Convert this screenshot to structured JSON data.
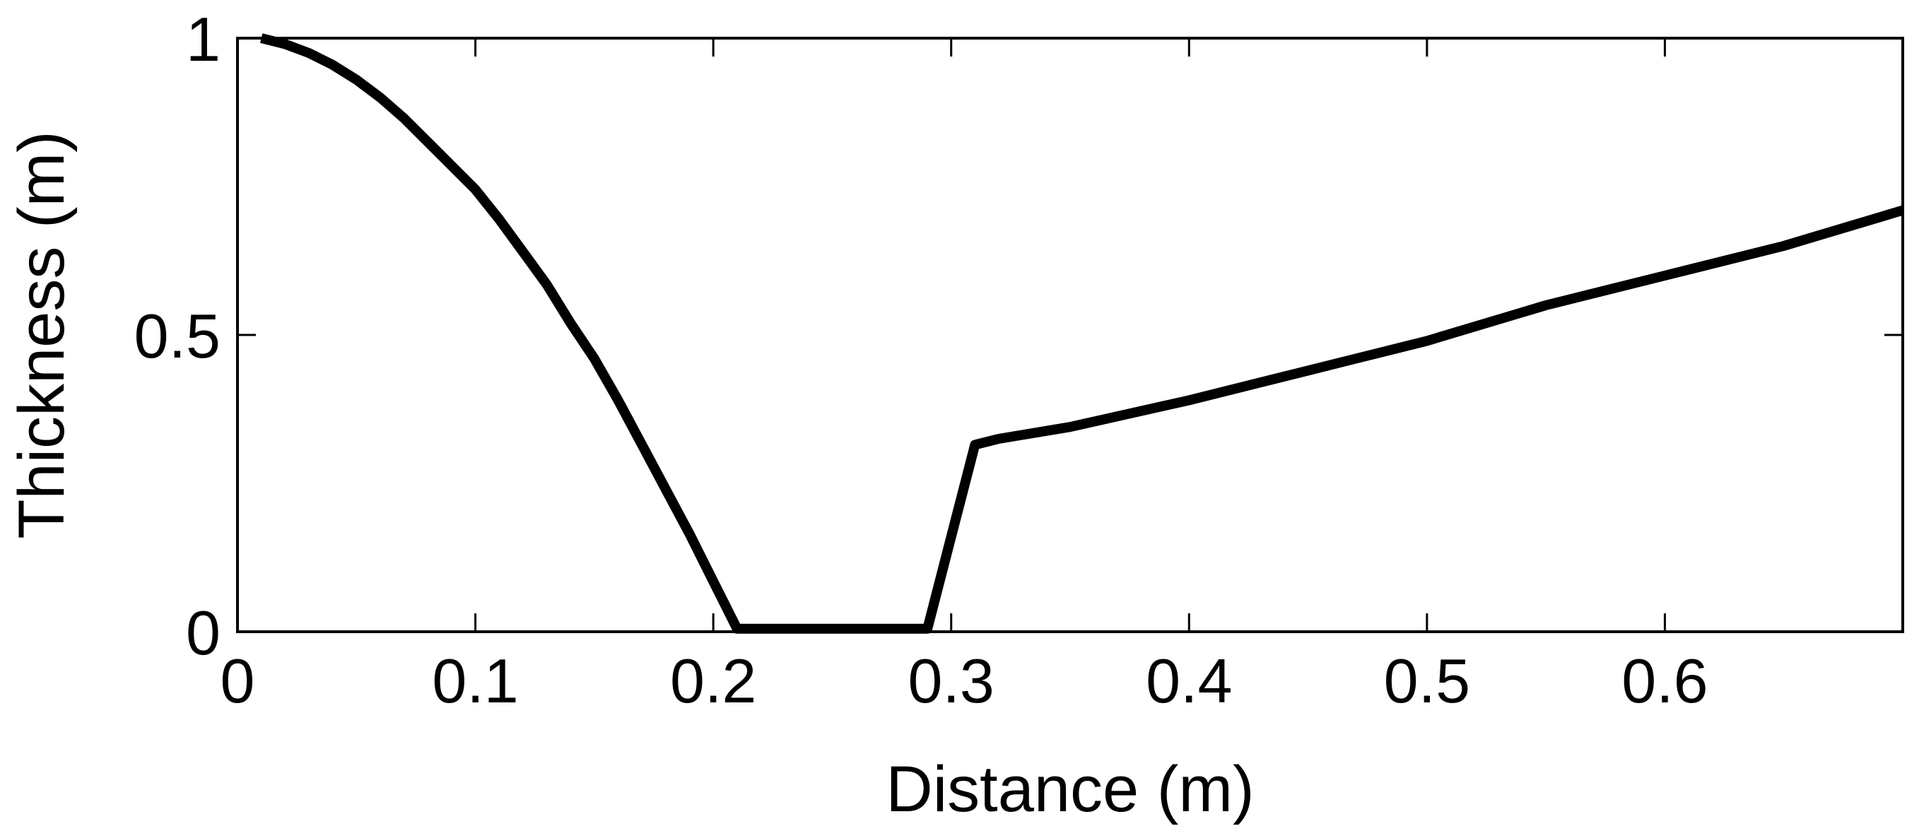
{
  "chart_data": {
    "type": "line",
    "title": "",
    "xlabel": "Distance (m)",
    "ylabel": "Thickness (m)",
    "xlim": [
      0,
      0.7
    ],
    "ylim": [
      0,
      1
    ],
    "grid": false,
    "legend": "none",
    "line_color": "#000000",
    "x_ticks": [
      {
        "value": 0,
        "label": "0"
      },
      {
        "value": 0.1,
        "label": "0.1"
      },
      {
        "value": 0.2,
        "label": "0.2"
      },
      {
        "value": 0.3,
        "label": "0.3"
      },
      {
        "value": 0.4,
        "label": "0.4"
      },
      {
        "value": 0.5,
        "label": "0.5"
      },
      {
        "value": 0.6,
        "label": "0.6"
      }
    ],
    "y_ticks": [
      {
        "value": 0,
        "label": "0"
      },
      {
        "value": 0.5,
        "label": "0.5"
      },
      {
        "value": 1,
        "label": "1"
      }
    ],
    "series": [
      {
        "x": [
          0.01,
          0.02,
          0.03,
          0.04,
          0.05,
          0.06,
          0.07,
          0.08,
          0.09,
          0.1,
          0.11,
          0.12,
          0.13,
          0.14,
          0.15,
          0.16,
          0.17,
          0.18,
          0.19,
          0.2,
          0.21,
          0.22,
          0.23,
          0.24,
          0.25,
          0.26,
          0.27,
          0.28,
          0.29,
          0.3,
          0.31,
          0.32,
          0.35,
          0.4,
          0.45,
          0.5,
          0.55,
          0.6,
          0.65,
          0.7
        ],
        "y": [
          1.0,
          0.99,
          0.975,
          0.955,
          0.93,
          0.9,
          0.865,
          0.825,
          0.785,
          0.745,
          0.695,
          0.64,
          0.585,
          0.52,
          0.46,
          0.39,
          0.315,
          0.24,
          0.165,
          0.085,
          0.005,
          0.005,
          0.005,
          0.005,
          0.005,
          0.005,
          0.005,
          0.005,
          0.005,
          0.16,
          0.315,
          0.325,
          0.345,
          0.39,
          0.44,
          0.49,
          0.55,
          0.6,
          0.65,
          0.71
        ]
      }
    ]
  }
}
